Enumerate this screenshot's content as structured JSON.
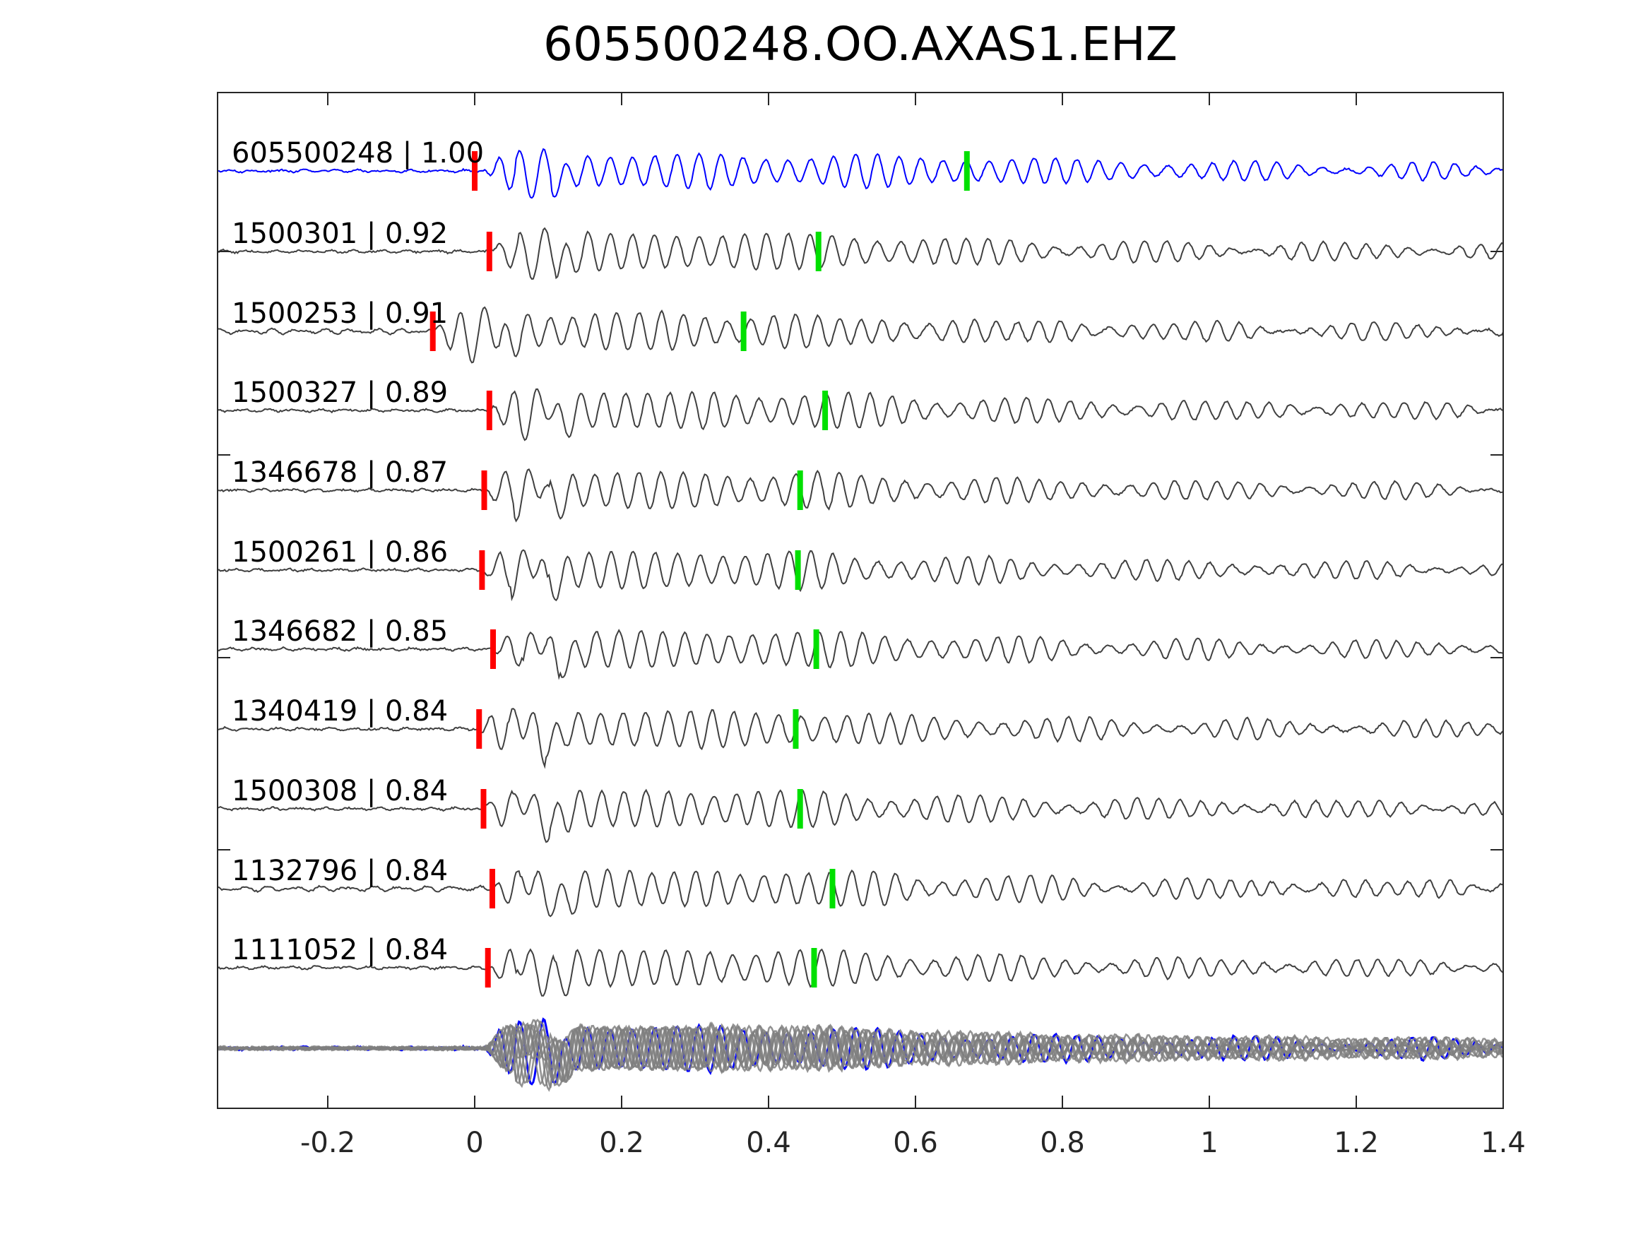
{
  "chart_data": {
    "type": "line",
    "title": "605500248.OO.AXAS1.EHZ",
    "xlabel": "",
    "ylabel": "",
    "xlim": [
      -0.35,
      1.4
    ],
    "xticks": [
      -0.2,
      0,
      0.2,
      0.4,
      0.6,
      0.8,
      1,
      1.2,
      1.4
    ],
    "xtick_labels": [
      "-0.2",
      "0",
      "0.2",
      "0.4",
      "0.6",
      "0.8",
      "1",
      "1.2",
      "1.4"
    ],
    "grid": false,
    "legend": "none",
    "colors": {
      "template": "#0000ff",
      "trace": "#404040",
      "stack": "#7f7f7f",
      "p_pick": "#ff0000",
      "s_pick": "#00e000",
      "axes": "#262626"
    },
    "series": [
      {
        "label": "605500248 | 1.00",
        "p_time": 0.0,
        "s_time": 0.67,
        "template": true
      },
      {
        "label": "1500301 | 0.92",
        "p_time": 0.02,
        "s_time": 0.468
      },
      {
        "label": "1500253 | 0.91",
        "p_time": -0.057,
        "s_time": 0.366
      },
      {
        "label": "1500327 | 0.89",
        "p_time": 0.02,
        "s_time": 0.477
      },
      {
        "label": "1346678 | 0.87",
        "p_time": 0.013,
        "s_time": 0.443
      },
      {
        "label": "1500261 | 0.86",
        "p_time": 0.01,
        "s_time": 0.44
      },
      {
        "label": "1346682 | 0.85",
        "p_time": 0.025,
        "s_time": 0.465
      },
      {
        "label": "1340419 | 0.84",
        "p_time": 0.006,
        "s_time": 0.437
      },
      {
        "label": "1500308 | 0.84",
        "p_time": 0.012,
        "s_time": 0.443
      },
      {
        "label": "1132796 | 0.84",
        "p_time": 0.024,
        "s_time": 0.487
      },
      {
        "label": "1111052 | 0.84",
        "p_time": 0.018,
        "s_time": 0.462
      }
    ]
  }
}
